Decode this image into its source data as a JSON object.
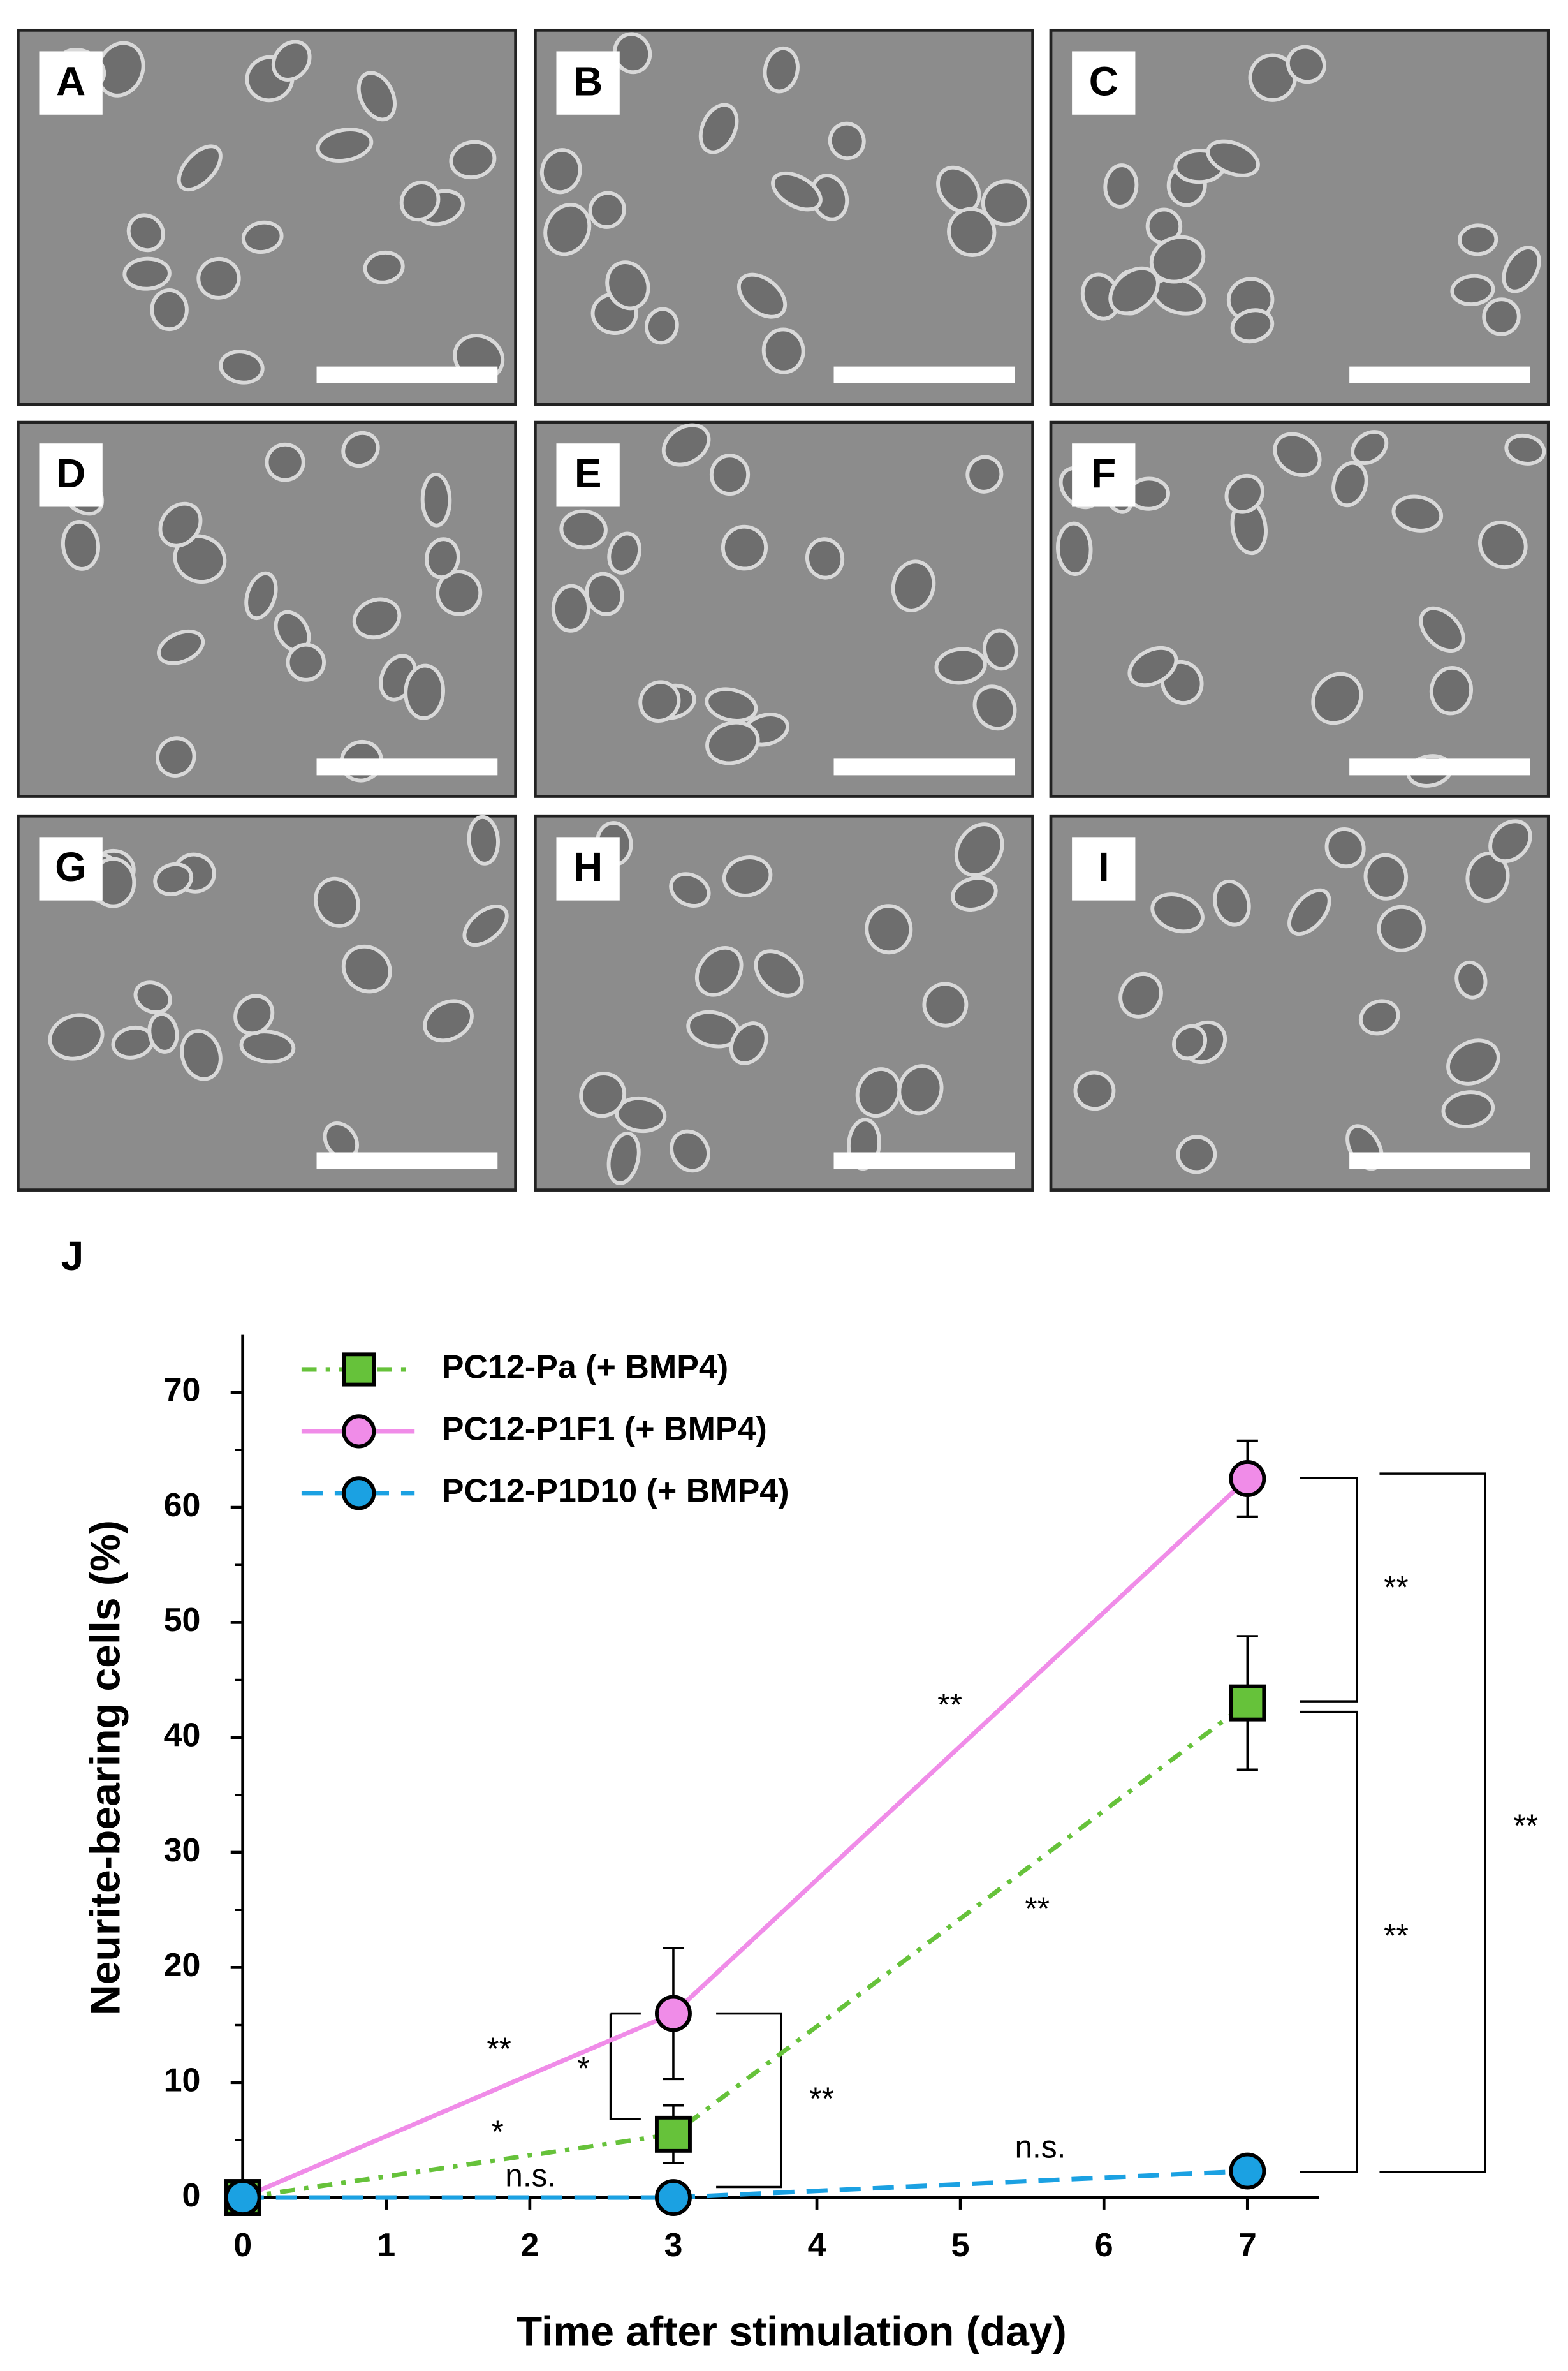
{
  "panels": [
    {
      "label": "A"
    },
    {
      "label": "B"
    },
    {
      "label": "C"
    },
    {
      "label": "D"
    },
    {
      "label": "E"
    },
    {
      "label": "F"
    },
    {
      "label": "G"
    },
    {
      "label": "H"
    },
    {
      "label": "I"
    }
  ],
  "chart_data": {
    "type": "line",
    "title": "J",
    "x_label": "Time after stimulation (day)",
    "y_label": "Neurite-bearing cells (%)",
    "x": [
      0,
      3,
      7
    ],
    "xlim": [
      0,
      7.5
    ],
    "xticks": [
      0,
      1,
      2,
      3,
      4,
      5,
      6,
      7
    ],
    "ylim": [
      0,
      75
    ],
    "yticks": [
      0,
      10,
      20,
      30,
      40,
      50,
      60,
      70
    ],
    "legend": "top-left",
    "series": [
      {
        "name": "PC12-Pa (+ BMP4)",
        "color": "#66c23a",
        "marker": "square",
        "line": "dash-dot",
        "values": [
          0,
          5.5,
          43
        ],
        "errors": [
          0,
          2.5,
          5.8
        ]
      },
      {
        "name": "PC12-P1F1 (+ BMP4)",
        "color": "#f08ce8",
        "marker": "circle",
        "line": "solid",
        "values": [
          0,
          16,
          62.5
        ],
        "errors": [
          0,
          5.7,
          3.3
        ]
      },
      {
        "name": "PC12-P1D10 (+ BMP4)",
        "color": "#1ba1e2",
        "marker": "circle",
        "line": "dashed",
        "values": [
          0,
          0,
          2.3
        ],
        "errors": [
          0,
          0,
          0
        ]
      }
    ],
    "annotations": [
      "**",
      "*",
      "*",
      "n.s.",
      "**",
      "**",
      "**",
      "n.s.",
      "**",
      "**",
      "**"
    ]
  }
}
